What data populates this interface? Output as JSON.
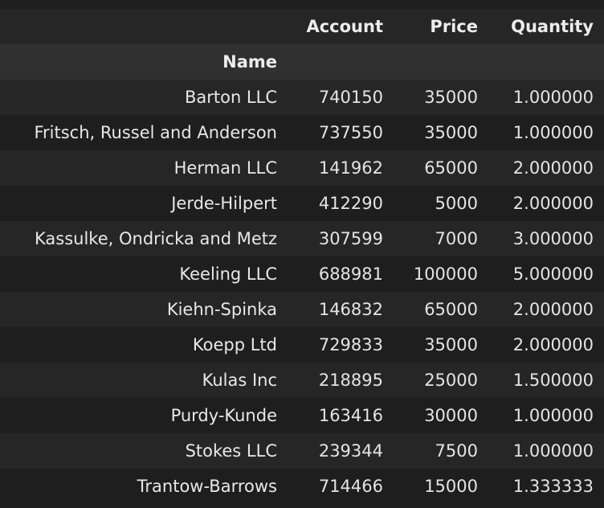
{
  "table": {
    "columns": [
      "Account",
      "Price",
      "Quantity"
    ],
    "index_name": "Name",
    "rows": [
      {
        "name": "Barton LLC",
        "account": "740150",
        "price": "35000",
        "quantity": "1.000000"
      },
      {
        "name": "Fritsch, Russel and Anderson",
        "account": "737550",
        "price": "35000",
        "quantity": "1.000000"
      },
      {
        "name": "Herman LLC",
        "account": "141962",
        "price": "65000",
        "quantity": "2.000000"
      },
      {
        "name": "Jerde-Hilpert",
        "account": "412290",
        "price": "5000",
        "quantity": "2.000000"
      },
      {
        "name": "Kassulke, Ondricka and Metz",
        "account": "307599",
        "price": "7000",
        "quantity": "3.000000"
      },
      {
        "name": "Keeling LLC",
        "account": "688981",
        "price": "100000",
        "quantity": "5.000000"
      },
      {
        "name": "Kiehn-Spinka",
        "account": "146832",
        "price": "65000",
        "quantity": "2.000000"
      },
      {
        "name": "Koepp Ltd",
        "account": "729833",
        "price": "35000",
        "quantity": "2.000000"
      },
      {
        "name": "Kulas Inc",
        "account": "218895",
        "price": "25000",
        "quantity": "1.500000"
      },
      {
        "name": "Purdy-Kunde",
        "account": "163416",
        "price": "30000",
        "quantity": "1.000000"
      },
      {
        "name": "Stokes LLC",
        "account": "239344",
        "price": "7500",
        "quantity": "1.000000"
      },
      {
        "name": "Trantow-Barrows",
        "account": "714466",
        "price": "15000",
        "quantity": "1.333333"
      }
    ]
  }
}
